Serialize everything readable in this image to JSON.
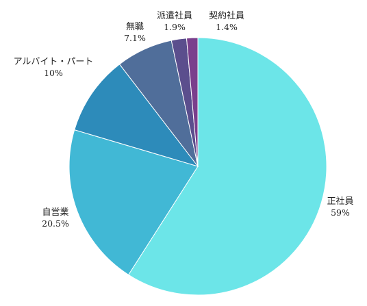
{
  "chart_data": {
    "type": "pie",
    "title": "",
    "categories": [
      "正社員",
      "自営業",
      "アルバイト・パート",
      "無職",
      "派遣社員",
      "契約社員"
    ],
    "values": [
      59,
      20.5,
      10,
      7.1,
      1.9,
      1.4
    ],
    "value_labels": [
      "59%",
      "20.5%",
      "10%",
      "7.1%",
      "1.9%",
      "1.4%"
    ],
    "colors": [
      "#6ce5e8",
      "#41b8d5",
      "#2d8bba",
      "#506e9a",
      "#5b4e8d",
      "#7a3f8c"
    ],
    "start_angle": "12 o'clock",
    "direction": "clockwise",
    "legend": "none"
  }
}
